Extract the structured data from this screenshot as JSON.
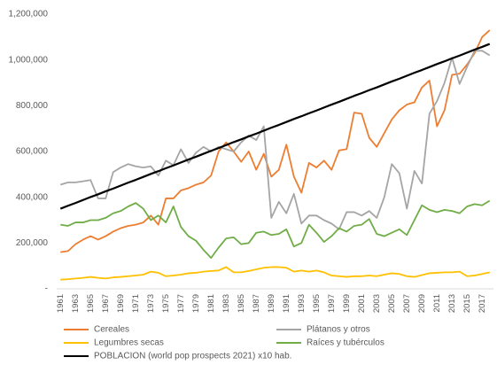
{
  "chart_data": {
    "type": "line",
    "categories": [
      "1961",
      null,
      "1963",
      null,
      "1965",
      null,
      "1967",
      null,
      "1969",
      null,
      "1971",
      null,
      "1973",
      null,
      "1975",
      null,
      "1977",
      null,
      "1979",
      null,
      "1981",
      null,
      "1983",
      null,
      "1985",
      null,
      "1987",
      null,
      "1989",
      null,
      "1991",
      null,
      "1993",
      null,
      "1995",
      null,
      "1997",
      null,
      "1999",
      null,
      "2001",
      null,
      "2003",
      null,
      "2005",
      null,
      "2007",
      null,
      "2009",
      null,
      "2011",
      null,
      "2013",
      null,
      "2015",
      null,
      "2017",
      null
    ],
    "ylim": [
      0,
      1200000
    ],
    "yticks": [
      {
        "value": 0,
        "label": "-"
      },
      {
        "value": 200000,
        "label": "200,000"
      },
      {
        "value": 400000,
        "label": "400,000"
      },
      {
        "value": 600000,
        "label": "600,000"
      },
      {
        "value": 800000,
        "label": "800,000"
      },
      {
        "value": 1000000,
        "label": "1,000,000"
      },
      {
        "value": 1200000,
        "label": "1,200,000"
      }
    ],
    "grid": false,
    "legend": "bottom",
    "series": [
      {
        "name": "Cereales",
        "color": "#ed7d31",
        "values": [
          160000,
          165000,
          195000,
          215000,
          230000,
          215000,
          230000,
          250000,
          265000,
          275000,
          280000,
          290000,
          320000,
          280000,
          395000,
          395000,
          430000,
          440000,
          455000,
          465000,
          495000,
          600000,
          640000,
          600000,
          555000,
          600000,
          520000,
          590000,
          490000,
          520000,
          630000,
          490000,
          420000,
          550000,
          530000,
          560000,
          520000,
          605000,
          610000,
          770000,
          765000,
          660000,
          620000,
          680000,
          740000,
          780000,
          805000,
          815000,
          880000,
          910000,
          710000,
          780000,
          935000,
          940000,
          980000,
          1030000,
          1100000,
          1130000
        ]
      },
      {
        "name": "Plátanos y otros",
        "color": "#a5a5a5",
        "values": [
          455000,
          465000,
          465000,
          470000,
          475000,
          395000,
          395000,
          510000,
          530000,
          545000,
          535000,
          530000,
          535000,
          495000,
          560000,
          540000,
          610000,
          550000,
          595000,
          620000,
          600000,
          620000,
          610000,
          600000,
          640000,
          670000,
          650000,
          710000,
          310000,
          380000,
          330000,
          415000,
          285000,
          320000,
          320000,
          300000,
          285000,
          260000,
          335000,
          335000,
          320000,
          340000,
          310000,
          400000,
          545000,
          505000,
          350000,
          515000,
          460000,
          765000,
          820000,
          900000,
          1010000,
          895000,
          970000,
          1040000,
          1040000,
          1020000
        ]
      },
      {
        "name": "Legumbres secas",
        "color": "#ffc000",
        "values": [
          40000,
          42000,
          45000,
          48000,
          52000,
          48000,
          45000,
          50000,
          52000,
          55000,
          58000,
          62000,
          75000,
          70000,
          55000,
          58000,
          62000,
          68000,
          70000,
          75000,
          78000,
          80000,
          95000,
          72000,
          72000,
          78000,
          85000,
          92000,
          95000,
          95000,
          92000,
          75000,
          80000,
          75000,
          80000,
          72000,
          58000,
          55000,
          52000,
          55000,
          55000,
          58000,
          55000,
          62000,
          68000,
          65000,
          55000,
          52000,
          60000,
          68000,
          70000,
          72000,
          72000,
          75000,
          55000,
          58000,
          65000,
          72000
        ]
      },
      {
        "name": "Raíces y tubérculos",
        "color": "#70ad47",
        "values": [
          280000,
          275000,
          290000,
          290000,
          300000,
          300000,
          310000,
          330000,
          340000,
          360000,
          375000,
          350000,
          300000,
          320000,
          290000,
          360000,
          270000,
          230000,
          210000,
          170000,
          135000,
          180000,
          220000,
          225000,
          195000,
          200000,
          245000,
          250000,
          235000,
          240000,
          260000,
          185000,
          200000,
          280000,
          245000,
          205000,
          230000,
          265000,
          250000,
          275000,
          280000,
          305000,
          240000,
          230000,
          245000,
          260000,
          235000,
          300000,
          365000,
          345000,
          335000,
          345000,
          340000,
          330000,
          360000,
          370000,
          365000,
          385000
        ]
      },
      {
        "name": "POBLACION (world pop prospects 2021) x10 hab.",
        "color": "#000000",
        "values": [
          350000,
          363000,
          375000,
          388000,
          401000,
          413000,
          426000,
          438000,
          451000,
          464000,
          476000,
          489000,
          502000,
          514000,
          527000,
          539000,
          552000,
          565000,
          577000,
          590000,
          603000,
          615000,
          628000,
          641000,
          653000,
          666000,
          678000,
          691000,
          704000,
          716000,
          729000,
          742000,
          754000,
          767000,
          779000,
          792000,
          805000,
          817000,
          830000,
          843000,
          855000,
          868000,
          880000,
          893000,
          906000,
          918000,
          931000,
          944000,
          956000,
          969000,
          982000,
          994000,
          1007000,
          1019000,
          1032000,
          1045000,
          1057000,
          1070000
        ]
      }
    ]
  }
}
